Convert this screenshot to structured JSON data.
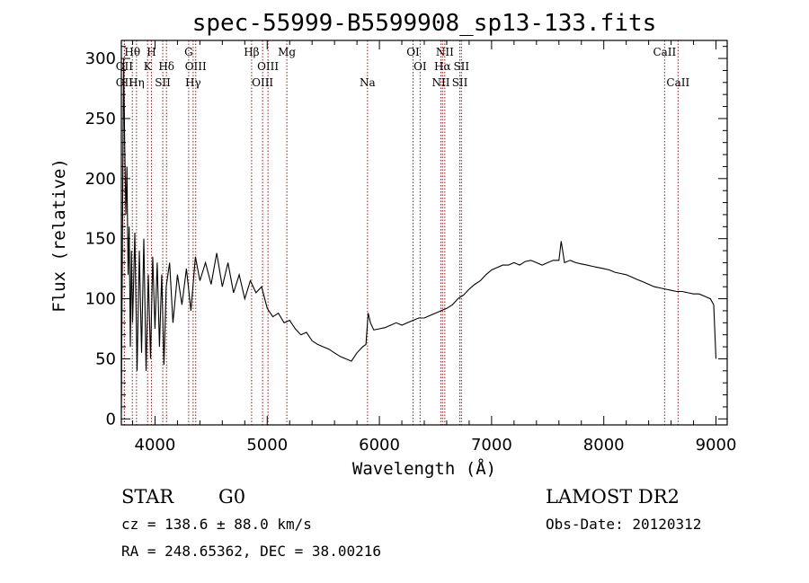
{
  "chart_data": {
    "type": "line",
    "title": "spec-55999-B5599908_sp13-133.fits",
    "xlabel": "Wavelength (Å)",
    "ylabel": "Flux (relative)",
    "xlim": [
      3700,
      9100
    ],
    "ylim": [
      -5,
      315
    ],
    "x_ticks": [
      "4000",
      "5000",
      "6000",
      "7000",
      "8000",
      "9000"
    ],
    "x_tick_values": [
      4000,
      5000,
      6000,
      7000,
      8000,
      9000
    ],
    "y_ticks": [
      "0",
      "50",
      "100",
      "150",
      "200",
      "250",
      "300"
    ],
    "y_tick_values": [
      0,
      50,
      100,
      150,
      200,
      250,
      300
    ],
    "grid": false,
    "legend": "none",
    "line_color": "#000000",
    "marker_color": "#8b1a1a",
    "series": [
      {
        "x": [
          3700,
          3710,
          3720,
          3730,
          3740,
          3750,
          3760,
          3770,
          3780,
          3790,
          3800,
          3820,
          3840,
          3860,
          3880,
          3900,
          3920,
          3940,
          3960,
          3980,
          4000,
          4020,
          4040,
          4060,
          4080,
          4100,
          4130,
          4160,
          4200,
          4240,
          4280,
          4320,
          4360,
          4400,
          4450,
          4500,
          4550,
          4600,
          4650,
          4700,
          4750,
          4800,
          4850,
          4900,
          4950,
          5000,
          5050,
          5100,
          5150,
          5200,
          5250,
          5300,
          5350,
          5400,
          5450,
          5500,
          5550,
          5600,
          5650,
          5700,
          5750,
          5800,
          5850,
          5880,
          5900,
          5920,
          5950,
          6000,
          6050,
          6100,
          6150,
          6200,
          6250,
          6300,
          6350,
          6400,
          6450,
          6500,
          6550,
          6600,
          6650,
          6700,
          6750,
          6800,
          6850,
          6900,
          6950,
          7000,
          7050,
          7100,
          7150,
          7200,
          7250,
          7300,
          7350,
          7400,
          7450,
          7500,
          7550,
          7600,
          7620,
          7650,
          7700,
          7750,
          7800,
          7850,
          7900,
          7950,
          8000,
          8050,
          8100,
          8150,
          8200,
          8250,
          8300,
          8350,
          8400,
          8450,
          8500,
          8550,
          8600,
          8650,
          8700,
          8750,
          8800,
          8850,
          8900,
          8950,
          8980,
          9000
        ],
        "y": [
          5,
          150,
          300,
          230,
          170,
          210,
          120,
          160,
          60,
          140,
          80,
          155,
          40,
          140,
          55,
          150,
          40,
          120,
          50,
          135,
          75,
          130,
          60,
          120,
          45,
          110,
          130,
          80,
          120,
          95,
          125,
          90,
          135,
          115,
          130,
          112,
          138,
          110,
          130,
          105,
          120,
          100,
          115,
          105,
          110,
          92,
          85,
          88,
          80,
          82,
          75,
          70,
          72,
          65,
          62,
          60,
          58,
          55,
          52,
          50,
          48,
          55,
          60,
          62,
          88,
          80,
          74,
          75,
          76,
          78,
          80,
          78,
          80,
          82,
          84,
          84,
          86,
          88,
          90,
          92,
          95,
          100,
          103,
          108,
          112,
          115,
          120,
          124,
          126,
          128,
          128,
          130,
          128,
          131,
          132,
          130,
          128,
          130,
          132,
          132,
          148,
          130,
          132,
          130,
          129,
          128,
          127,
          126,
          125,
          124,
          122,
          121,
          120,
          118,
          116,
          114,
          112,
          110,
          109,
          108,
          107,
          106,
          106,
          105,
          104,
          104,
          102,
          100,
          95,
          50
        ]
      }
    ],
    "lines": [
      {
        "name": "OII",
        "wave": 3727,
        "label_row": 2
      },
      {
        "name": "Hθ",
        "wave": 3798,
        "label_row": 1
      },
      {
        "name": "OII",
        "wave": 3727,
        "label_row": 3
      },
      {
        "name": "Hη",
        "wave": 3835,
        "label_row": 3
      },
      {
        "name": "K",
        "wave": 3934,
        "label_row": 2
      },
      {
        "name": "H",
        "wave": 3968,
        "label_row": 1
      },
      {
        "name": "SII",
        "wave": 4069,
        "label_row": 3
      },
      {
        "name": "Hδ",
        "wave": 4102,
        "label_row": 2
      },
      {
        "name": "G",
        "wave": 4300,
        "label_row": 1
      },
      {
        "name": "Hγ",
        "wave": 4340,
        "label_row": 3
      },
      {
        "name": "OIII",
        "wave": 4363,
        "label_row": 2
      },
      {
        "name": "Hβ",
        "wave": 4861,
        "label_row": 1
      },
      {
        "name": "OIII",
        "wave": 4959,
        "label_row": 3
      },
      {
        "name": "OIII",
        "wave": 5007,
        "label_row": 2
      },
      {
        "name": "Mg",
        "wave": 5175,
        "label_row": 1
      },
      {
        "name": "Na",
        "wave": 5894,
        "label_row": 3
      },
      {
        "name": "OI",
        "wave": 6300,
        "label_row": 1
      },
      {
        "name": "OI",
        "wave": 6363,
        "label_row": 2
      },
      {
        "name": "NII",
        "wave": 6548,
        "label_row": 3
      },
      {
        "name": "Hα",
        "wave": 6563,
        "label_row": 2
      },
      {
        "name": "NII",
        "wave": 6583,
        "label_row": 1
      },
      {
        "name": "SII",
        "wave": 6717,
        "label_row": 3
      },
      {
        "name": "SII",
        "wave": 6731,
        "label_row": 2
      },
      {
        "name": "CaII",
        "wave": 8542,
        "label_row": 1
      },
      {
        "name": "CaII",
        "wave": 8662,
        "label_row": 3
      }
    ]
  },
  "info": {
    "object_class": "STAR",
    "subclass": "G0",
    "survey": "LAMOST DR2",
    "redshift": "cz = 138.6 ± 88.0 km/s",
    "obs_date": "Obs-Date: 20120312",
    "coords": "RA = 248.65362, DEC =  38.00216"
  }
}
